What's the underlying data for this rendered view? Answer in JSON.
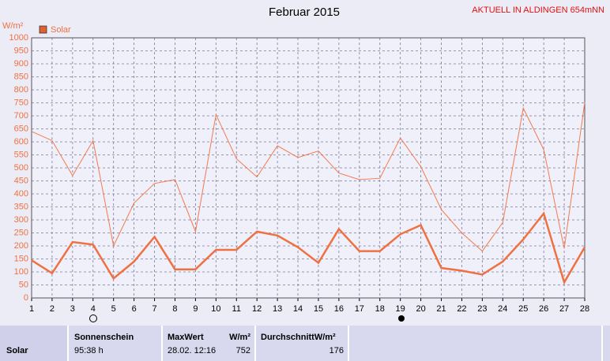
{
  "chart_data": {
    "type": "line",
    "title": "Februar 2015",
    "annotation": "AKTUELL IN ALDINGEN 654mNN",
    "y_label": "W/m²",
    "categories": [
      "1",
      "2",
      "3",
      "4",
      "5",
      "6",
      "7",
      "8",
      "9",
      "10",
      "11",
      "12",
      "13",
      "14",
      "15",
      "16",
      "17",
      "18",
      "19",
      "20",
      "21",
      "22",
      "23",
      "24",
      "25",
      "26",
      "27",
      "28"
    ],
    "series": [
      {
        "name": "Solar",
        "color": "#ef7040",
        "values": [
          145,
          95,
          215,
          205,
          75,
          140,
          235,
          110,
          110,
          185,
          185,
          255,
          240,
          195,
          135,
          265,
          180,
          180,
          245,
          280,
          115,
          105,
          90,
          140,
          225,
          325,
          60,
          195
        ]
      },
      {
        "color": "#f27a4c",
        "values": [
          640,
          605,
          470,
          605,
          200,
          365,
          440,
          455,
          255,
          705,
          535,
          465,
          585,
          540,
          565,
          480,
          455,
          460,
          615,
          505,
          340,
          250,
          180,
          290,
          730,
          570,
          190,
          752
        ]
      }
    ],
    "ylim": [
      0,
      1000
    ],
    "yticks": [
      0,
      50,
      100,
      150,
      200,
      250,
      300,
      350,
      400,
      450,
      500,
      550,
      600,
      650,
      700,
      750,
      800,
      850,
      900,
      950,
      1000
    ],
    "grid": true,
    "legend": "top-left"
  },
  "summary": {
    "row_label": "Solar",
    "columns": [
      {
        "header": "Sonnenschein",
        "value": "95:38 h"
      },
      {
        "header": "MaxWert",
        "unit": "W/m²",
        "date": "28.02. 12:16",
        "value": 752
      },
      {
        "header": "DurchschnittW/m²",
        "value": 176
      }
    ]
  }
}
